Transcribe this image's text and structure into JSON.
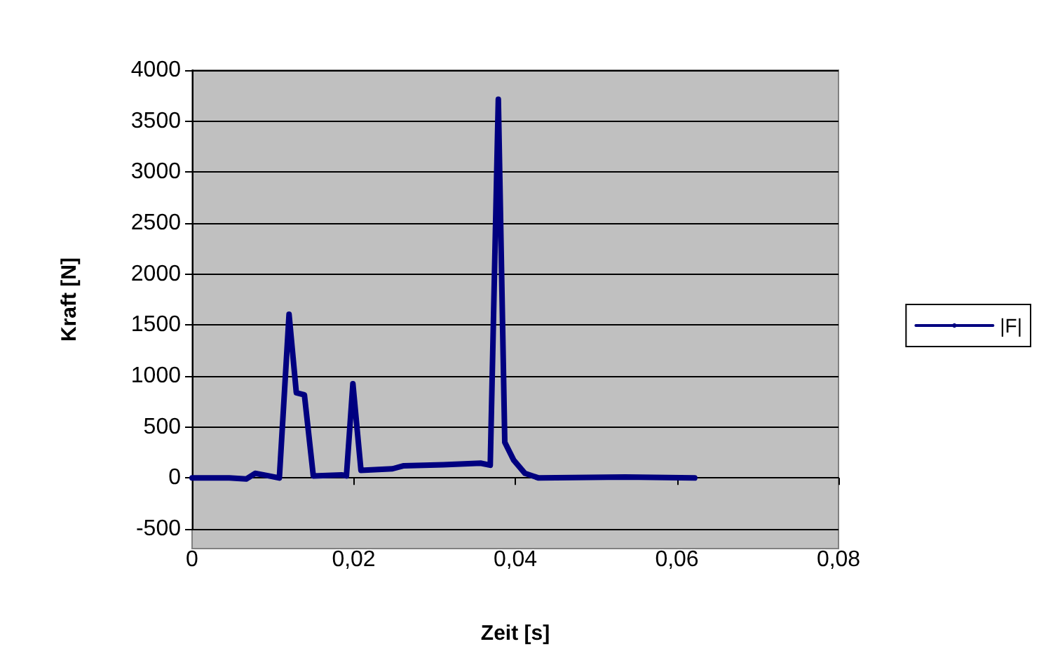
{
  "chart_data": {
    "type": "line",
    "xlabel": "Zeit [s]",
    "ylabel": "Kraft [N]",
    "x": [
      0,
      0.0046,
      0.0067,
      0.0078,
      0.0095,
      0.0108,
      0.012,
      0.0129,
      0.0139,
      0.015,
      0.0185,
      0.0191,
      0.0199,
      0.0209,
      0.0248,
      0.0262,
      0.0311,
      0.0357,
      0.0369,
      0.0379,
      0.0387,
      0.0398,
      0.0412,
      0.0429,
      0.0536,
      0.0622
    ],
    "series": [
      {
        "name": "|F|",
        "color": "#000080",
        "values": [
          0,
          0,
          -10,
          45,
          20,
          0,
          1605,
          835,
          815,
          20,
          30,
          20,
          925,
          75,
          90,
          120,
          130,
          145,
          125,
          3715,
          350,
          175,
          45,
          0,
          10,
          0
        ]
      }
    ],
    "xlim": [
      0,
      0.08
    ],
    "xticks": [
      {
        "value": 0,
        "label": "0"
      },
      {
        "value": 0.02,
        "label": "0,02"
      },
      {
        "value": 0.04,
        "label": "0,04"
      },
      {
        "value": 0.06,
        "label": "0,06"
      },
      {
        "value": 0.08,
        "label": "0,08"
      }
    ],
    "ylim": [
      -500,
      4000
    ],
    "yticks": [
      -500,
      0,
      500,
      1000,
      1500,
      2000,
      2500,
      3000,
      3500,
      4000
    ],
    "grid": "y",
    "legend": "right",
    "marker": "none",
    "line_style": "solid"
  }
}
